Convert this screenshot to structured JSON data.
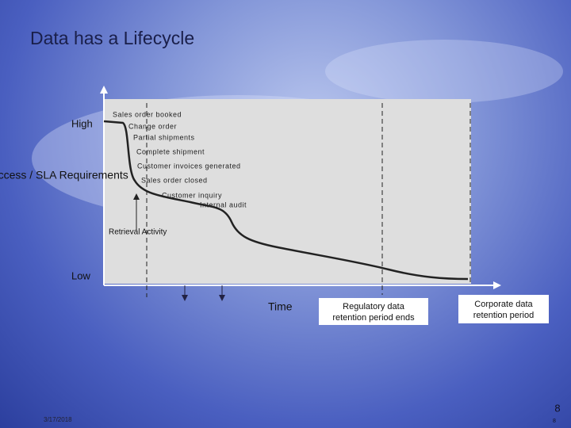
{
  "title": "Data has a Lifecycle",
  "axis": {
    "high": "High",
    "y_label": "Access / SLA Requirements",
    "low": "Low",
    "x_label": "Time"
  },
  "events": [
    "Sales order booked",
    "Change order",
    "Partial shipments",
    "Complete shipment",
    "Customer invoices generated",
    "Sales order closed",
    "Customer inquiry",
    "Internal audit"
  ],
  "retrieval": "Retrieval Activity",
  "boxes": [
    "Regulatory data retention period ends",
    "Corporate data retention period"
  ],
  "footer": {
    "date": "3/17/2018",
    "page": "8",
    "page_small": "8"
  }
}
